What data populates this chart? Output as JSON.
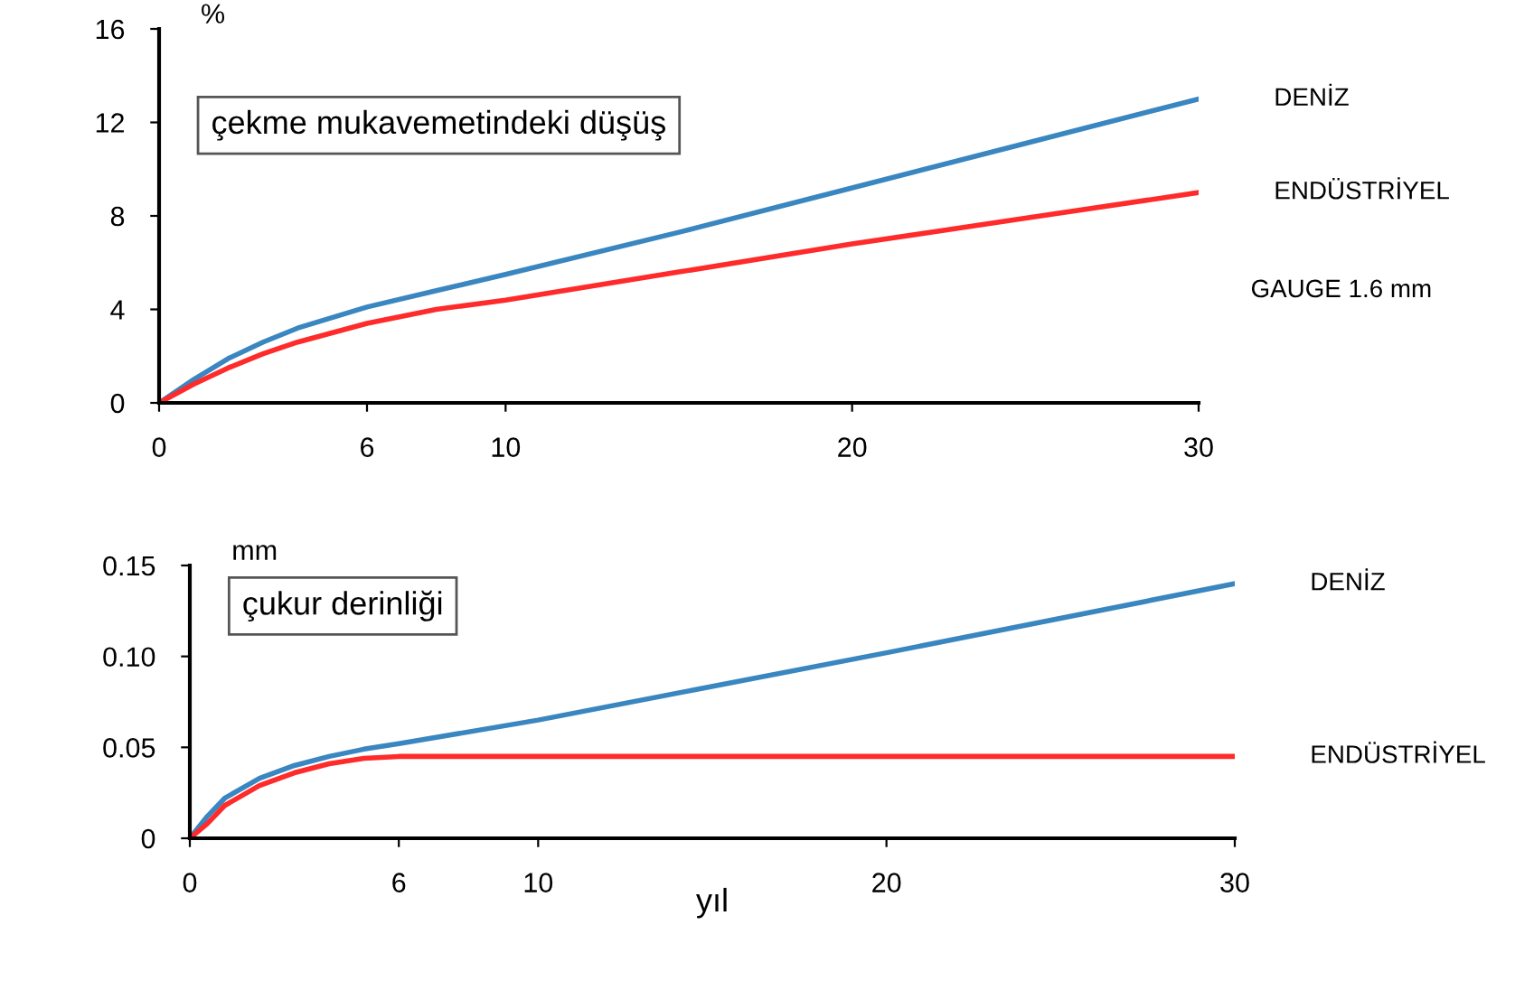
{
  "chart_data": [
    {
      "type": "line",
      "title": "çekme mukavemetindeki düşüş",
      "ylabel": "%",
      "xlim": [
        0,
        30
      ],
      "xticks": [
        0,
        6,
        10,
        20,
        30
      ],
      "ylim": [
        0,
        16
      ],
      "yticks": [
        0,
        4,
        8,
        12,
        16
      ],
      "grid": false,
      "legend": false,
      "annotations": [
        "GAUGE 1.6 mm"
      ],
      "series": [
        {
          "name": "DENİZ",
          "color": "#3a86c0",
          "x": [
            0,
            1,
            2,
            3,
            4,
            6,
            8,
            10,
            15,
            20,
            25,
            30
          ],
          "values": [
            0,
            1,
            1.9,
            2.6,
            3.2,
            4.1,
            4.8,
            5.5,
            7.3,
            9.2,
            11.1,
            13
          ]
        },
        {
          "name": "ENDÜSTRİYEL",
          "color": "#ff2a2a",
          "x": [
            0,
            1,
            2,
            3,
            4,
            6,
            8,
            10,
            15,
            20,
            25,
            30
          ],
          "values": [
            0,
            0.8,
            1.5,
            2.1,
            2.6,
            3.4,
            4.0,
            4.4,
            5.6,
            6.8,
            7.9,
            9
          ]
        }
      ]
    },
    {
      "type": "line",
      "title": "çukur derinliği",
      "ylabel": "mm",
      "xlabel": "yıl",
      "xlim": [
        0,
        30
      ],
      "xticks": [
        0,
        6,
        10,
        20,
        30
      ],
      "ylim": [
        0,
        0.15
      ],
      "yticks": [
        0,
        {
          "value": 0.05,
          "label": "0.05"
        },
        {
          "value": 0.1,
          "label": "0.10"
        },
        {
          "value": 0.15,
          "label": "0.15"
        }
      ],
      "grid": false,
      "legend": false,
      "series": [
        {
          "name": "DENİZ",
          "color": "#3a86c0",
          "x": [
            0,
            0.5,
            1,
            2,
            3,
            4,
            5,
            6,
            10,
            20,
            30
          ],
          "values": [
            0,
            0.012,
            0.022,
            0.033,
            0.04,
            0.045,
            0.049,
            0.052,
            0.065,
            0.102,
            0.14
          ]
        },
        {
          "name": "ENDÜSTRİYEL",
          "color": "#ff2a2a",
          "x": [
            0,
            0.5,
            1,
            2,
            3,
            4,
            5,
            6,
            10,
            20,
            30
          ],
          "values": [
            0,
            0.008,
            0.018,
            0.029,
            0.036,
            0.041,
            0.044,
            0.045,
            0.045,
            0.045,
            0.045
          ]
        }
      ]
    }
  ]
}
